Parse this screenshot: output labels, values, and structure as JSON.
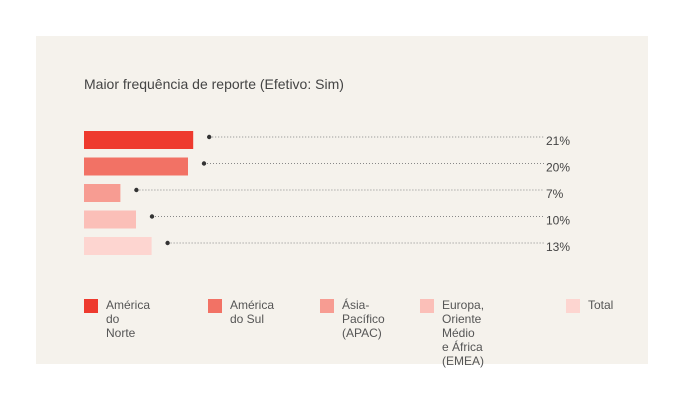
{
  "chart_data": {
    "type": "bar",
    "orientation": "horizontal",
    "title": "Maior frequência de reporte (Efetivo: Sim)",
    "categories": [
      "América do Norte",
      "América do Sul",
      "Ásia-Pacífico (APAC)",
      "Europa, Oriente Médio e África (EMEA)",
      "Total"
    ],
    "legend_labels": [
      "América do Norte",
      "América do Sul",
      "Ásia-Pacífico\n(APAC)",
      "Europa, Oriente Médio\ne África (EMEA)",
      "Total"
    ],
    "values": [
      21,
      20,
      7,
      10,
      13
    ],
    "value_labels": [
      "21%",
      "20%",
      "7%",
      "10%",
      "13%"
    ],
    "colors": [
      "#ee3a2e",
      "#f27265",
      "#f79c92",
      "#fbbfb8",
      "#fdd5d0"
    ],
    "legend_position": "bottom",
    "grid": false
  }
}
